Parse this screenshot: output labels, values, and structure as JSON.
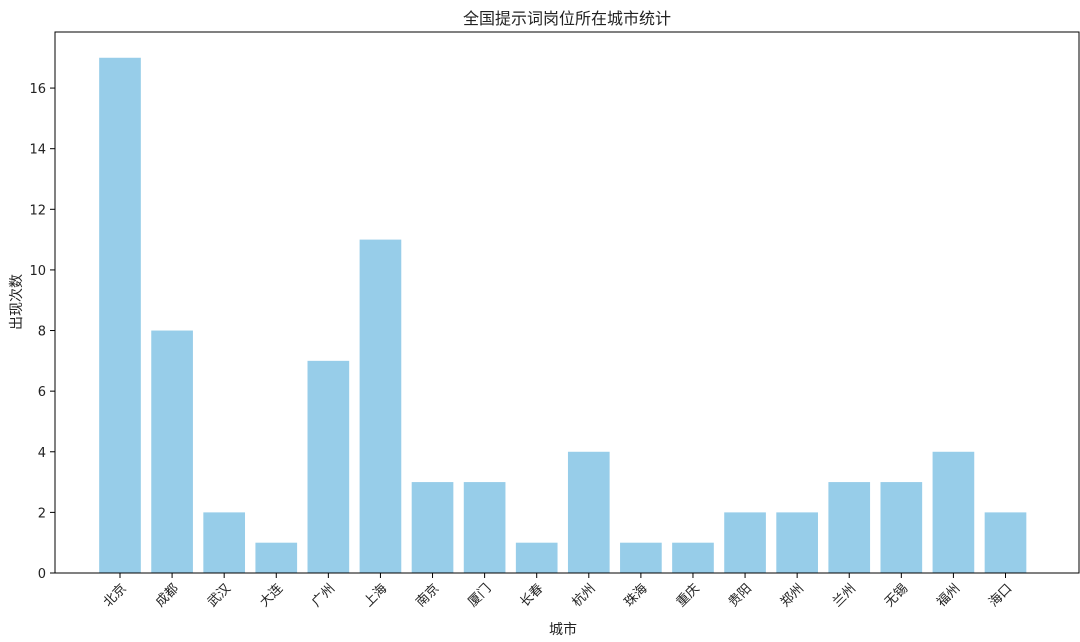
{
  "chart_data": {
    "type": "bar",
    "title": "全国提示词岗位所在城市统计",
    "xlabel": "城市",
    "ylabel": "出现次数",
    "categories": [
      "北京",
      "成都",
      "武汉",
      "大连",
      "广州",
      "上海",
      "南京",
      "厦门",
      "长春",
      "杭州",
      "珠海",
      "重庆",
      "贵阳",
      "郑州",
      "兰州",
      "无锡",
      "福州",
      "海口"
    ],
    "values": [
      17,
      8,
      2,
      1,
      7,
      11,
      3,
      3,
      1,
      4,
      1,
      1,
      2,
      2,
      3,
      3,
      4,
      2
    ],
    "ylim": [
      0,
      17.85
    ],
    "yticks": [
      0,
      2,
      4,
      6,
      8,
      10,
      12,
      14,
      16
    ],
    "grid": false,
    "bar_color": "#97cde9"
  }
}
